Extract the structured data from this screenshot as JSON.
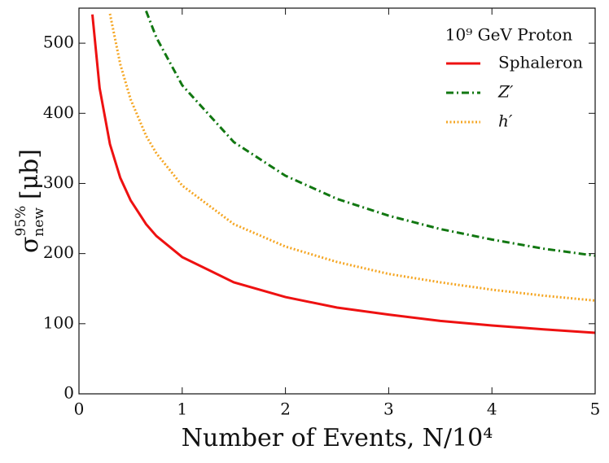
{
  "chart_data": {
    "type": "line",
    "xlabel": "Number of Events, N/10⁴",
    "ylabel": {
      "symbol": "σ",
      "sup": "95%",
      "sub": "new",
      "unit": "[μb]"
    },
    "legend_title": "10⁹ GeV Proton",
    "legend": "upper right",
    "x": [
      0.13,
      0.2,
      0.3,
      0.4,
      0.5,
      0.65,
      0.75,
      1,
      1.5,
      2,
      2.5,
      3,
      3.5,
      4,
      4.5,
      5
    ],
    "series": [
      {
        "name": "Sphaleron",
        "color": "#ee1111",
        "style": "solid",
        "values": [
          541,
          436,
          356,
          308,
          276,
          242,
          225,
          195,
          159,
          138,
          123,
          113,
          104,
          97.5,
          92,
          87
        ]
      },
      {
        "name": "Z′",
        "color": "#117711",
        "style": "dashdot",
        "values": [
          null,
          null,
          null,
          null,
          null,
          546,
          508,
          440,
          359,
          311,
          278,
          254,
          235,
          220,
          207,
          197
        ]
      },
      {
        "name": "h′",
        "color": "#f5a623",
        "style": "dotted",
        "values": [
          null,
          null,
          542,
          470,
          420,
          368,
          343,
          297,
          242,
          210,
          188,
          171,
          159,
          148.5,
          140,
          133
        ]
      }
    ],
    "xlim": [
      0,
      5
    ],
    "xticks": [
      0,
      1,
      2,
      3,
      4,
      5
    ],
    "ylim": [
      0,
      550
    ],
    "yticks": [
      0,
      100,
      200,
      300,
      400,
      500
    ],
    "grid": false
  }
}
